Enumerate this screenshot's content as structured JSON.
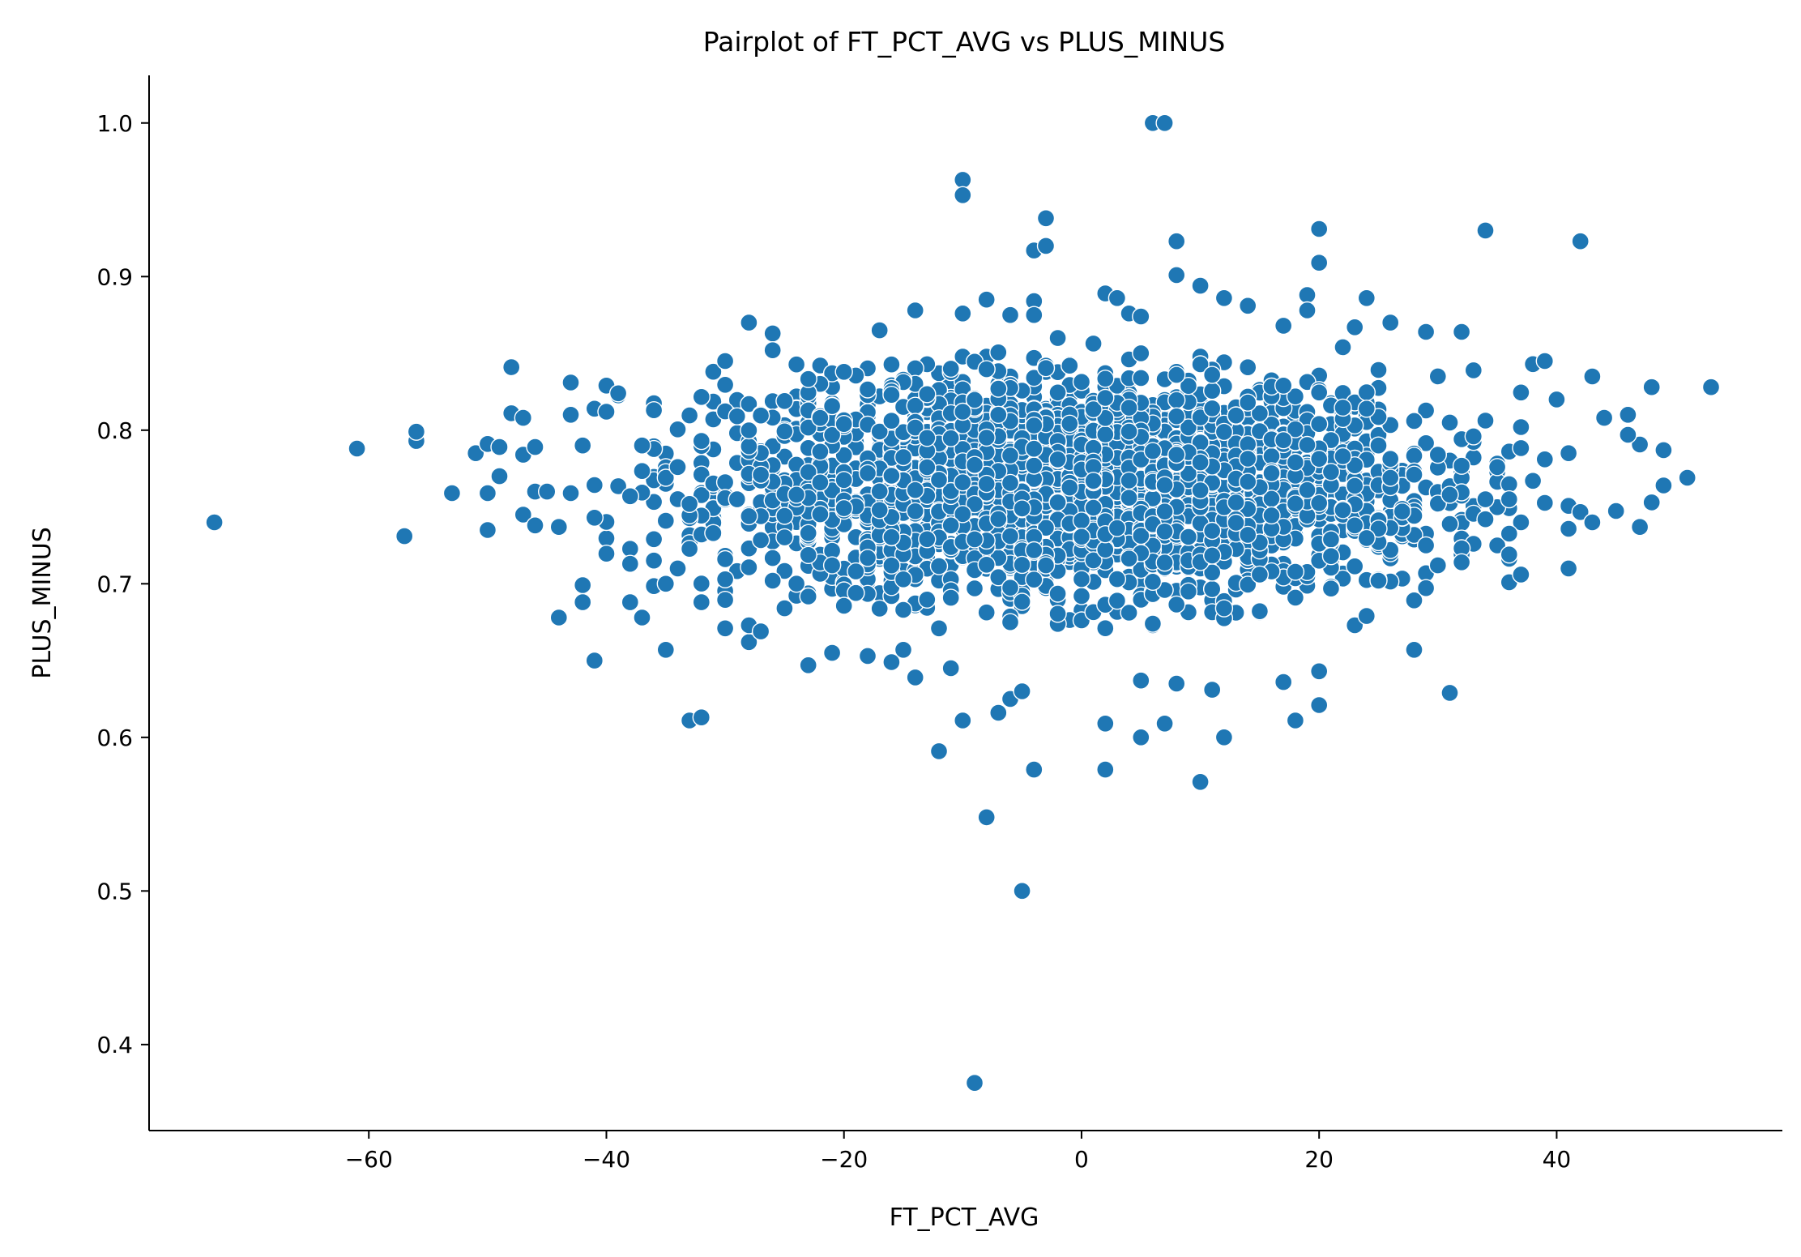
{
  "chart_data": {
    "type": "scatter",
    "title": "Pairplot of FT_PCT_AVG vs PLUS_MINUS",
    "xlabel": "FT_PCT_AVG",
    "ylabel": "PLUS_MINUS",
    "xlim": [
      -78.5,
      59
    ],
    "ylim": [
      0.344,
      1.031
    ],
    "xticks": [
      -60,
      -40,
      -20,
      0,
      20,
      40
    ],
    "xtick_labels": [
      "−60",
      "−40",
      "−20",
      "0",
      "20",
      "40"
    ],
    "yticks": [
      0.4,
      0.5,
      0.6,
      0.7,
      0.8,
      0.9,
      1.0
    ],
    "ytick_labels": [
      "0.4",
      "0.5",
      "0.6",
      "0.7",
      "0.8",
      "0.9",
      "1.0"
    ],
    "grid": false,
    "color": "#1f77b4",
    "series": [
      {
        "points": [
          [
            -73,
            0.74
          ],
          [
            -61,
            0.788
          ],
          [
            -57,
            0.731
          ],
          [
            -56,
            0.793
          ],
          [
            -56,
            0.799
          ],
          [
            -53,
            0.759
          ],
          [
            -51,
            0.785
          ],
          [
            -50,
            0.791
          ],
          [
            -50,
            0.759
          ],
          [
            -50,
            0.735
          ],
          [
            -49,
            0.77
          ],
          [
            -49,
            0.789
          ],
          [
            -48,
            0.841
          ],
          [
            -48,
            0.811
          ],
          [
            -47,
            0.808
          ],
          [
            -47,
            0.745
          ],
          [
            -47,
            0.784
          ],
          [
            -46,
            0.76
          ],
          [
            -46,
            0.738
          ],
          [
            -46,
            0.789
          ],
          [
            -45,
            0.76
          ],
          [
            -44,
            0.737
          ],
          [
            -44,
            0.678
          ],
          [
            -43,
            0.759
          ],
          [
            -43,
            0.831
          ],
          [
            -43,
            0.81
          ],
          [
            -42,
            0.688
          ],
          [
            -42,
            0.79
          ],
          [
            -41,
            0.65
          ],
          [
            -41,
            0.814
          ],
          [
            -41,
            0.743
          ],
          [
            -40,
            0.829
          ],
          [
            -40,
            0.812
          ],
          [
            -39,
            0.824
          ],
          [
            -38,
            0.688
          ],
          [
            -38,
            0.713
          ],
          [
            -37,
            0.678
          ],
          [
            -36,
            0.813
          ],
          [
            -35,
            0.7
          ],
          [
            -35,
            0.657
          ],
          [
            -35,
            0.769
          ],
          [
            -34,
            0.71
          ],
          [
            -33,
            0.611
          ],
          [
            -32,
            0.613
          ],
          [
            -32,
            0.688
          ],
          [
            -30,
            0.671
          ],
          [
            -30,
            0.845
          ],
          [
            -28,
            0.662
          ],
          [
            -28,
            0.673
          ],
          [
            -28,
            0.87
          ],
          [
            -27,
            0.669
          ],
          [
            -26,
            0.863
          ],
          [
            -26,
            0.852
          ],
          [
            -25,
            0.684
          ],
          [
            -23,
            0.647
          ],
          [
            -21,
            0.655
          ],
          [
            -20,
            0.838
          ],
          [
            -18,
            0.653
          ],
          [
            -17,
            0.865
          ],
          [
            -16,
            0.649
          ],
          [
            -15,
            0.657
          ],
          [
            -14,
            0.878
          ],
          [
            -14,
            0.639
          ],
          [
            -12,
            0.591
          ],
          [
            -11,
            0.645
          ],
          [
            -10,
            0.963
          ],
          [
            -10,
            0.953
          ],
          [
            -10,
            0.876
          ],
          [
            -10,
            0.611
          ],
          [
            -9,
            0.375
          ],
          [
            -8,
            0.885
          ],
          [
            -8,
            0.548
          ],
          [
            -7,
            0.616
          ],
          [
            -6,
            0.875
          ],
          [
            -6,
            0.625
          ],
          [
            -5,
            0.5
          ],
          [
            -5,
            0.63
          ],
          [
            -4,
            0.917
          ],
          [
            -4,
            0.884
          ],
          [
            -4,
            0.875
          ],
          [
            -4,
            0.579
          ],
          [
            -3,
            0.92
          ],
          [
            -3,
            0.938
          ],
          [
            -2,
            0.86
          ],
          [
            2,
            0.889
          ],
          [
            2,
            0.609
          ],
          [
            2,
            0.579
          ],
          [
            3,
            0.886
          ],
          [
            4,
            0.876
          ],
          [
            5,
            0.874
          ],
          [
            5,
            0.6
          ],
          [
            5,
            0.637
          ],
          [
            6,
            1.0
          ],
          [
            7,
            1.0
          ],
          [
            7,
            0.609
          ],
          [
            8,
            0.923
          ],
          [
            8,
            0.901
          ],
          [
            8,
            0.635
          ],
          [
            10,
            0.894
          ],
          [
            10,
            0.571
          ],
          [
            11,
            0.631
          ],
          [
            12,
            0.6
          ],
          [
            12,
            0.886
          ],
          [
            14,
            0.881
          ],
          [
            17,
            0.636
          ],
          [
            17,
            0.868
          ],
          [
            18,
            0.611
          ],
          [
            19,
            0.888
          ],
          [
            19,
            0.878
          ],
          [
            20,
            0.931
          ],
          [
            20,
            0.909
          ],
          [
            20,
            0.643
          ],
          [
            20,
            0.621
          ],
          [
            22,
            0.854
          ],
          [
            23,
            0.867
          ],
          [
            23,
            0.673
          ],
          [
            24,
            0.886
          ],
          [
            24,
            0.679
          ],
          [
            26,
            0.87
          ],
          [
            28,
            0.657
          ],
          [
            29,
            0.864
          ],
          [
            31,
            0.629
          ],
          [
            32,
            0.864
          ],
          [
            33,
            0.839
          ],
          [
            34,
            0.93
          ],
          [
            36,
            0.701
          ],
          [
            37,
            0.706
          ],
          [
            38,
            0.843
          ],
          [
            39,
            0.845
          ],
          [
            40,
            0.82
          ],
          [
            41,
            0.71
          ],
          [
            41,
            0.785
          ],
          [
            42,
            0.923
          ],
          [
            43,
            0.835
          ],
          [
            43,
            0.74
          ],
          [
            44,
            0.808
          ],
          [
            46,
            0.797
          ],
          [
            46,
            0.81
          ],
          [
            47,
            0.737
          ],
          [
            48,
            0.828
          ],
          [
            48,
            0.753
          ],
          [
            49,
            0.787
          ],
          [
            49,
            0.764
          ],
          [
            51,
            0.769
          ],
          [
            53,
            0.828
          ]
        ],
        "dense_cloud_sample": [
          [
            -38,
            0.757
          ],
          [
            -37,
            0.79
          ],
          [
            -36,
            0.729
          ],
          [
            -35,
            0.741
          ],
          [
            -34,
            0.776
          ],
          [
            -33,
            0.752
          ],
          [
            -32,
            0.793
          ],
          [
            -31,
            0.733
          ],
          [
            -30,
            0.716
          ],
          [
            -29,
            0.809
          ],
          [
            -28,
            0.744
          ],
          [
            -27,
            0.771
          ],
          [
            -26,
            0.702
          ],
          [
            -25,
            0.819
          ],
          [
            -24,
            0.758
          ],
          [
            -23,
            0.733
          ],
          [
            -22,
            0.786
          ],
          [
            -21,
            0.712
          ],
          [
            -20,
            0.804
          ],
          [
            -19,
            0.694
          ],
          [
            -18,
            0.772
          ],
          [
            -17,
            0.748
          ],
          [
            -16,
            0.823
          ],
          [
            -15,
            0.683
          ],
          [
            -14,
            0.761
          ],
          [
            -13,
            0.795
          ],
          [
            -12,
            0.671
          ],
          [
            -11,
            0.738
          ],
          [
            -10,
            0.812
          ],
          [
            -9,
            0.697
          ],
          [
            -8,
            0.765
          ],
          [
            -7,
            0.827
          ],
          [
            -6,
            0.675
          ],
          [
            -5,
            0.749
          ],
          [
            -4,
            0.803
          ],
          [
            -3,
            0.712
          ],
          [
            -2,
            0.781
          ],
          [
            -1,
            0.842
          ],
          [
            0,
            0.703
          ],
          [
            1,
            0.767
          ],
          [
            2,
            0.821
          ],
          [
            3,
            0.689
          ],
          [
            4,
            0.756
          ],
          [
            5,
            0.834
          ],
          [
            6,
            0.674
          ],
          [
            7,
            0.747
          ],
          [
            8,
            0.809
          ],
          [
            9,
            0.695
          ],
          [
            10,
            0.779
          ],
          [
            11,
            0.836
          ],
          [
            12,
            0.684
          ],
          [
            13,
            0.753
          ],
          [
            14,
            0.818
          ],
          [
            15,
            0.706
          ],
          [
            16,
            0.772
          ],
          [
            17,
            0.829
          ],
          [
            18,
            0.691
          ],
          [
            19,
            0.761
          ],
          [
            20,
            0.804
          ],
          [
            21,
            0.718
          ],
          [
            22,
            0.783
          ],
          [
            23,
            0.738
          ],
          [
            24,
            0.814
          ],
          [
            25,
            0.702
          ],
          [
            26,
            0.769
          ],
          [
            27,
            0.747
          ],
          [
            28,
            0.806
          ],
          [
            29,
            0.725
          ],
          [
            30,
            0.784
          ],
          [
            31,
            0.758
          ],
          [
            32,
            0.714
          ],
          [
            33,
            0.796
          ],
          [
            34,
            0.742
          ],
          [
            35,
            0.776
          ],
          [
            36,
            0.755
          ],
          [
            37,
            0.802
          ],
          [
            38,
            0.767
          ],
          [
            39,
            0.781
          ]
        ]
      }
    ]
  }
}
